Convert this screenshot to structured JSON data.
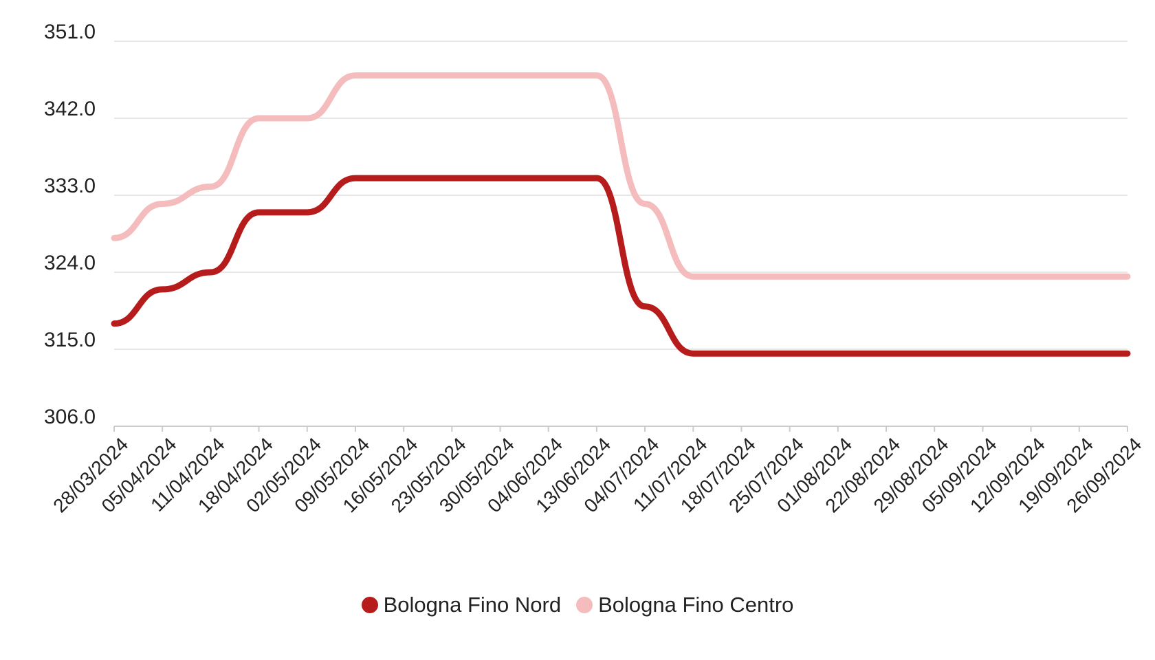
{
  "chart_data": {
    "type": "line",
    "title": "",
    "xlabel": "",
    "ylabel": "",
    "ylim": [
      306,
      351
    ],
    "yticks": [
      "351.0",
      "342.0",
      "333.0",
      "324.0",
      "315.0",
      "306.0"
    ],
    "ytick_values": [
      351,
      342,
      333,
      324,
      315,
      306
    ],
    "categories": [
      "28/03/2024",
      "05/04/2024",
      "11/04/2024",
      "18/04/2024",
      "02/05/2024",
      "09/05/2024",
      "16/05/2024",
      "23/05/2024",
      "30/05/2024",
      "04/06/2024",
      "13/06/2024",
      "04/07/2024",
      "11/07/2024",
      "18/07/2024",
      "25/07/2024",
      "01/08/2024",
      "22/08/2024",
      "29/08/2024",
      "05/09/2024",
      "12/09/2024",
      "19/09/2024",
      "26/09/2024"
    ],
    "grid": true,
    "legend_position": "bottom",
    "series": [
      {
        "name": "Bologna Fino Nord",
        "color": "#b71c1c",
        "values": [
          318,
          322,
          324,
          331,
          331,
          335,
          335,
          335,
          335,
          335,
          335,
          320,
          314.5,
          314.5,
          314.5,
          314.5,
          314.5,
          314.5,
          314.5,
          314.5,
          314.5,
          314.5
        ]
      },
      {
        "name": "Bologna Fino Centro",
        "color": "#f4bcbc",
        "values": [
          328,
          332,
          334,
          342,
          342,
          347,
          347,
          347,
          347,
          347,
          347,
          332,
          323.5,
          323.5,
          323.5,
          323.5,
          323.5,
          323.5,
          323.5,
          323.5,
          323.5,
          323.5
        ]
      }
    ]
  }
}
